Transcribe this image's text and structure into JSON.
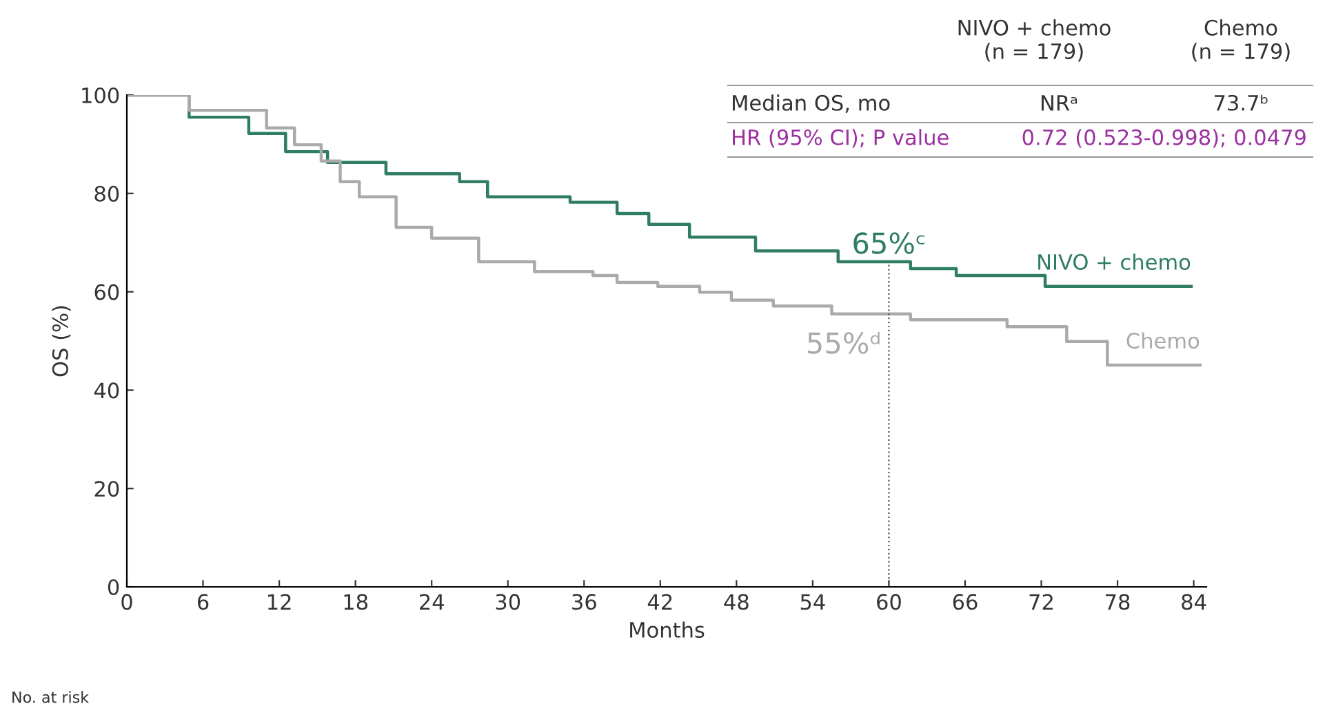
{
  "chart_data": {
    "type": "step",
    "xlabel": "Months",
    "ylabel": "OS (%)",
    "xlim": [
      0,
      85
    ],
    "ylim": [
      0,
      100
    ],
    "xticks": [
      0,
      6,
      12,
      18,
      24,
      30,
      36,
      42,
      48,
      54,
      60,
      66,
      72,
      78,
      84
    ],
    "yticks": [
      0,
      20,
      40,
      60,
      80,
      100
    ],
    "grid": false,
    "legend": false,
    "series": [
      {
        "name": "NIVO + chemo",
        "color": "#2e7d64",
        "x": [
          0,
          2.7,
          4.9,
          9.6,
          12.5,
          15.8,
          20.4,
          26.2,
          28.4,
          34.9,
          38.6,
          41.1,
          44.3,
          49.5,
          56,
          61.7,
          65.3,
          72.3,
          83.8
        ],
        "values": [
          100,
          100,
          95.5,
          92.2,
          88.5,
          86.3,
          84,
          82.4,
          79.3,
          78.2,
          75.9,
          73.7,
          71.1,
          68.3,
          66.1,
          64.7,
          63.3,
          61.1,
          61.1
        ]
      },
      {
        "name": "Chemo",
        "color": "#aaaaaa",
        "x": [
          0,
          3,
          4.9,
          11,
          13.2,
          15.3,
          16.8,
          18.3,
          21.2,
          24,
          27.7,
          32.1,
          36.7,
          38.6,
          41.8,
          45.1,
          47.6,
          50.9,
          55.5,
          61.7,
          69.3,
          74,
          77.2,
          84.5
        ],
        "values": [
          100,
          100,
          96.9,
          93.3,
          89.9,
          86.6,
          82.4,
          79.3,
          73.1,
          70.9,
          66.1,
          64.1,
          63.3,
          61.9,
          61.1,
          59.9,
          58.3,
          57.1,
          55.5,
          54.3,
          52.9,
          49.9,
          45.1,
          45.1
        ]
      }
    ],
    "ref_lines": [
      {
        "axis": "x",
        "value": 60,
        "color": "#555555",
        "line_style": "dotted"
      }
    ],
    "annotations": [
      {
        "text": "65%ᶜ",
        "x": 60,
        "y": 65
      },
      {
        "text": "55%ᵈ",
        "x": 60,
        "y": 55
      },
      "NIVO + chemo\n(n = 179)",
      "Chemo\n(n = 179)",
      "Median OS, mo",
      "NRᵃ",
      "73.7ᵇ",
      "HR (95% CI); P value",
      "0.72 (0.523-0.998); 0.0479",
      "No. at risk"
    ]
  }
}
